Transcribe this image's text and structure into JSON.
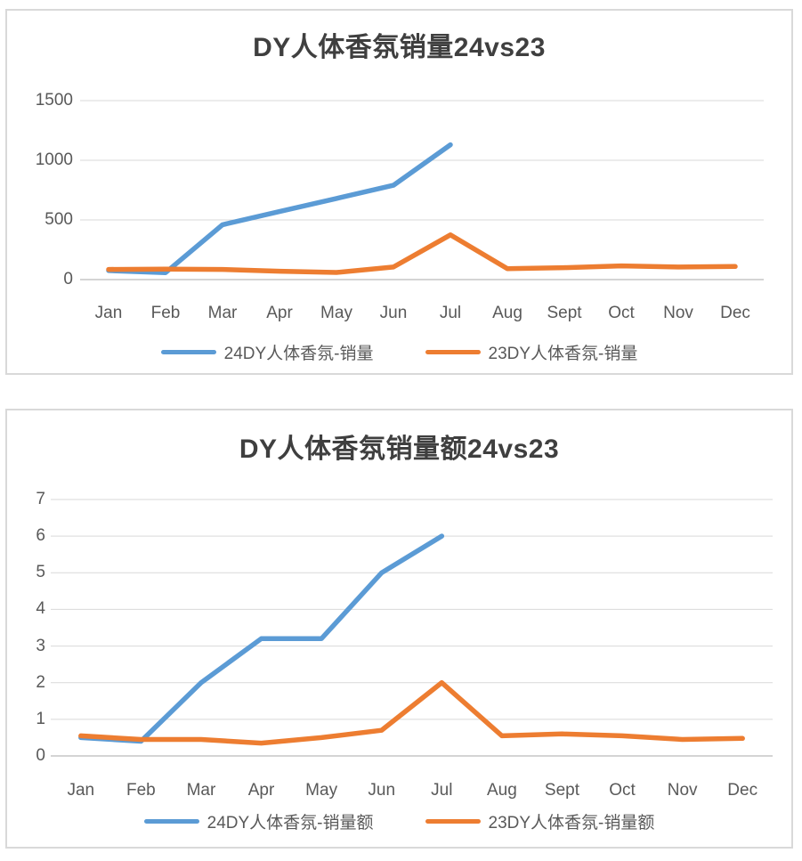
{
  "colors": {
    "series_blue": "#5B9BD5",
    "series_orange": "#ED7D31",
    "gridline": "#D9D9D9",
    "axis_baseline": "#C6C6C6",
    "tick_text": "#595959",
    "title_text": "#3F3F3F",
    "panel_border": "#D9D9D9",
    "background": "#FFFFFF"
  },
  "chart_data": [
    {
      "type": "line",
      "title": "DY人体香氛销量24vs23",
      "categories": [
        "Jan",
        "Feb",
        "Mar",
        "Apr",
        "May",
        "Jun",
        "Jul",
        "Aug",
        "Sept",
        "Oct",
        "Nov",
        "Dec"
      ],
      "xlabel": "",
      "ylabel": "",
      "ylim": [
        0,
        1500
      ],
      "y_ticks": [
        0,
        500,
        1000,
        1500
      ],
      "grid": true,
      "legend_position": "bottom",
      "series": [
        {
          "name": "24DY人体香氛-销量",
          "color": "#5B9BD5",
          "values": [
            75,
            58,
            460,
            570,
            680,
            790,
            1130,
            null,
            null,
            null,
            null,
            null
          ]
        },
        {
          "name": "23DY人体香氛-销量",
          "color": "#ED7D31",
          "values": [
            85,
            88,
            85,
            70,
            60,
            105,
            375,
            92,
            100,
            115,
            105,
            110
          ]
        }
      ]
    },
    {
      "type": "line",
      "title": "DY人体香氛销量额24vs23",
      "categories": [
        "Jan",
        "Feb",
        "Mar",
        "Apr",
        "May",
        "Jun",
        "Jul",
        "Aug",
        "Sept",
        "Oct",
        "Nov",
        "Dec"
      ],
      "xlabel": "",
      "ylabel": "",
      "ylim": [
        0,
        7
      ],
      "y_ticks": [
        0,
        1,
        2,
        3,
        4,
        5,
        6,
        7
      ],
      "grid": true,
      "legend_position": "bottom",
      "series": [
        {
          "name": "24DY人体香氛-销量额",
          "color": "#5B9BD5",
          "values": [
            0.5,
            0.4,
            2.0,
            3.2,
            3.2,
            5.0,
            6.0,
            null,
            null,
            null,
            null,
            null
          ]
        },
        {
          "name": "23DY人体香氛-销量额",
          "color": "#ED7D31",
          "values": [
            0.55,
            0.45,
            0.45,
            0.35,
            0.5,
            0.7,
            2.0,
            0.55,
            0.6,
            0.55,
            0.45,
            0.48
          ]
        }
      ]
    }
  ]
}
